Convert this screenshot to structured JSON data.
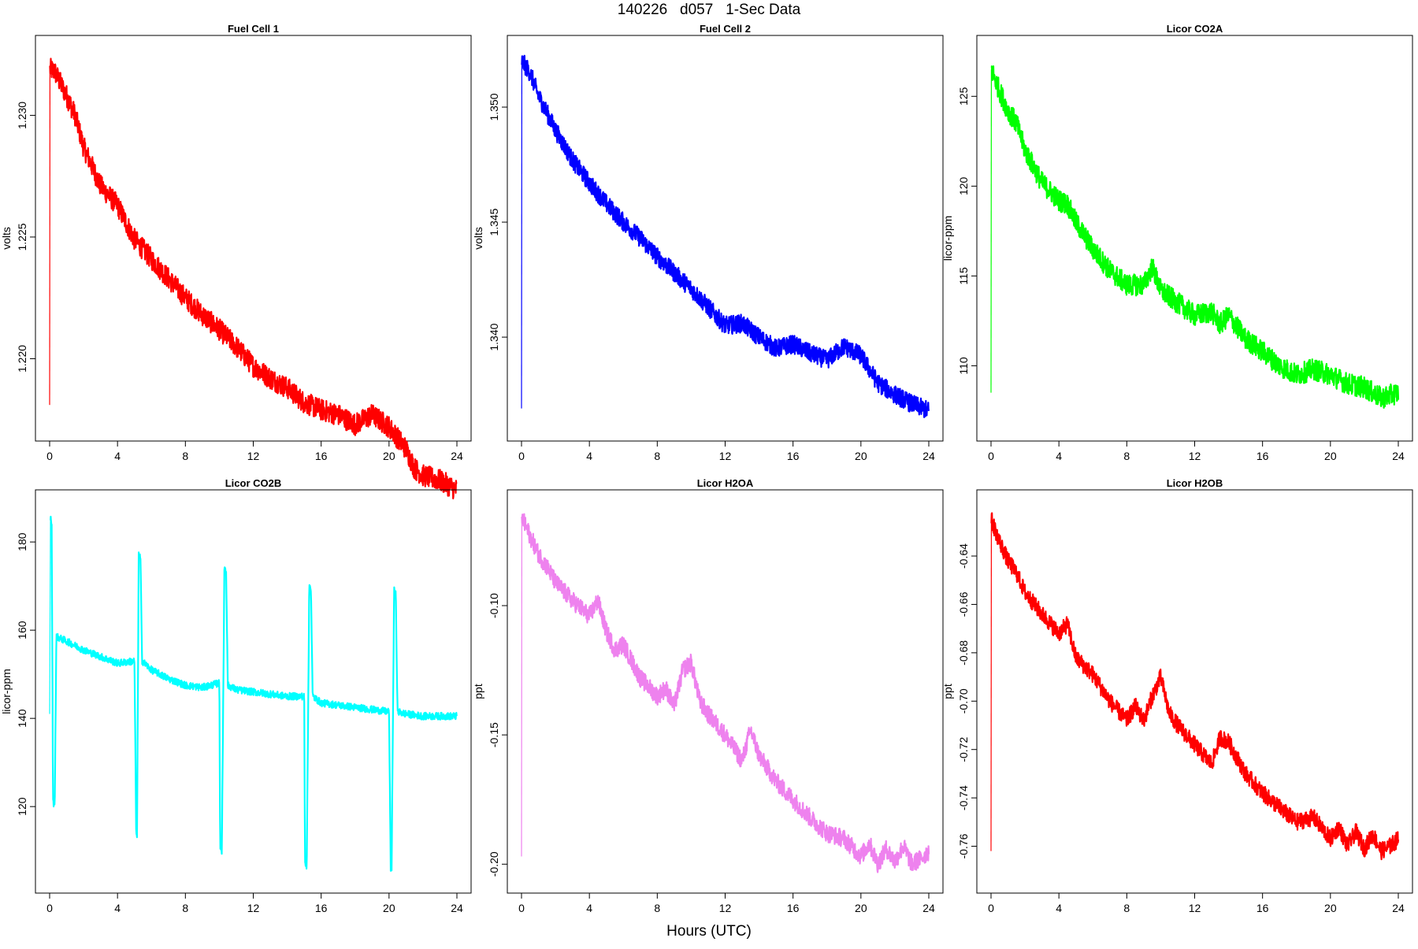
{
  "figure": {
    "title": "140226   d057   1-Sec Data",
    "xlabel": "Hours (UTC)"
  },
  "chart_data": [
    {
      "type": "line",
      "title": "Fuel Cell 1",
      "ylabel": "volts",
      "color": "#ff0000",
      "xlim": [
        0,
        24
      ],
      "ylim": [
        1.2172,
        1.2327
      ],
      "xticks": [
        0,
        4,
        8,
        12,
        16,
        20,
        24
      ],
      "yticks": [
        "1.220",
        "1.225",
        "1.230"
      ],
      "series": [
        {
          "x": [
            0,
            0.02,
            0.3,
            1,
            1.5,
            2,
            3,
            4,
            4.5,
            5,
            6,
            7,
            8,
            9,
            10,
            11,
            12,
            13,
            14,
            15,
            16,
            17,
            18,
            19,
            20,
            21,
            21.5,
            22,
            23,
            24
          ],
          "y": [
            1.2181,
            1.2319,
            1.2318,
            1.2308,
            1.23,
            1.2287,
            1.2271,
            1.2263,
            1.2256,
            1.2249,
            1.2241,
            1.2233,
            1.2225,
            1.2218,
            1.2212,
            1.2205,
            1.2197,
            1.2192,
            1.2188,
            1.2182,
            1.2179,
            1.2177,
            1.2173,
            1.2177,
            1.2172,
            1.2163,
            1.2155,
            1.2152,
            1.215,
            1.2146
          ],
          "band": 0.00045
        }
      ]
    },
    {
      "type": "line",
      "title": "Fuel Cell 2",
      "ylabel": "volts",
      "color": "#0000ff",
      "xlim": [
        0,
        24
      ],
      "ylim": [
        1.3361,
        1.3525
      ],
      "xticks": [
        0,
        4,
        8,
        12,
        16,
        20,
        24
      ],
      "yticks": [
        "1.340",
        "1.345",
        "1.350"
      ],
      "series": [
        {
          "x": [
            0,
            0.02,
            0.5,
            1,
            2,
            3,
            4,
            5,
            6,
            7,
            8,
            9,
            10,
            11,
            12,
            13,
            14,
            15,
            16,
            17,
            18,
            19,
            20,
            21,
            22,
            23,
            24
          ],
          "y": [
            1.3369,
            1.352,
            1.3515,
            1.3505,
            1.349,
            1.3477,
            1.3467,
            1.3458,
            1.345,
            1.3443,
            1.3435,
            1.3428,
            1.3421,
            1.3413,
            1.3405,
            1.3406,
            1.34,
            1.3395,
            1.3397,
            1.3393,
            1.339,
            1.3396,
            1.3392,
            1.338,
            1.3375,
            1.3371,
            1.3368
          ],
          "band": 0.0004
        }
      ]
    },
    {
      "type": "line",
      "title": "Licor CO2A",
      "ylabel": "licor-ppm",
      "color": "#00ff00",
      "xlim": [
        0,
        24
      ],
      "ylim": [
        106.6,
        127.6
      ],
      "xticks": [
        0,
        4,
        8,
        12,
        16,
        20,
        24
      ],
      "yticks": [
        "110",
        "115",
        "120",
        "125"
      ],
      "series": [
        {
          "x": [
            0,
            0.02,
            0.5,
            1,
            1.5,
            2,
            3,
            4,
            4.5,
            5,
            6,
            7,
            8,
            9,
            9.5,
            10,
            11,
            12,
            13,
            13.5,
            14,
            15,
            16,
            17,
            18,
            19,
            20,
            21,
            22,
            23,
            24
          ],
          "y": [
            108.5,
            126.5,
            125.3,
            124.2,
            123.5,
            122.0,
            120.2,
            119.2,
            119.0,
            118.0,
            116.5,
            115.3,
            114.5,
            114.5,
            115.5,
            114.2,
            113.5,
            112.8,
            113.0,
            112.3,
            112.8,
            111.5,
            110.8,
            110.0,
            109.5,
            109.8,
            109.5,
            109.0,
            108.8,
            108.2,
            108.5
          ],
          "band": 0.6
        }
      ]
    },
    {
      "type": "line",
      "title": "Licor CO2B",
      "ylabel": "licor-ppm",
      "color": "#00ffff",
      "xlim": [
        0,
        24
      ],
      "ylim": [
        103.6,
        188.6
      ],
      "xticks": [
        0,
        4,
        8,
        12,
        16,
        20,
        24
      ],
      "yticks": [
        "120",
        "140",
        "160",
        "180"
      ],
      "series": [
        {
          "x": [
            0,
            0.05,
            0.12,
            0.2,
            0.3,
            0.4,
            1,
            2,
            3,
            4,
            5,
            5.1,
            5.15,
            5.25,
            5.35,
            5.45,
            6,
            7,
            8,
            9,
            10,
            10.05,
            10.15,
            10.3,
            10.4,
            10.5,
            11,
            12,
            13,
            14,
            15,
            15.05,
            15.15,
            15.3,
            15.4,
            15.5,
            16,
            17,
            18,
            19,
            20,
            20.1,
            20.15,
            20.3,
            20.4,
            20.5,
            21,
            22,
            23,
            24
          ],
          "y": [
            141,
            185.5,
            184,
            121,
            120.5,
            158.5,
            157.5,
            155.5,
            154,
            152.5,
            153,
            114,
            113,
            177,
            176.5,
            153,
            151,
            149,
            147.5,
            147,
            148,
            111,
            110,
            174.5,
            173.5,
            147.5,
            146.5,
            146,
            145.5,
            145,
            145,
            107,
            106.5,
            170,
            169.5,
            145,
            143.5,
            143,
            142.5,
            142,
            141.5,
            106,
            105.5,
            169,
            168,
            141.5,
            141,
            140.5,
            140.5,
            140.5
          ],
          "band": 0.8
        }
      ]
    },
    {
      "type": "line",
      "title": "Licor H2OA",
      "ylabel": "ppt",
      "color": "#ee82ee",
      "xlim": [
        0,
        24
      ],
      "ylim": [
        -0.2057,
        -0.0607
      ],
      "xticks": [
        0,
        4,
        8,
        12,
        16,
        20,
        24
      ],
      "yticks": [
        "-0.20",
        "-0.15",
        "-0.10"
      ],
      "series": [
        {
          "x": [
            0,
            0.02,
            0.5,
            1,
            1.5,
            2,
            3,
            4,
            4.5,
            5,
            5.5,
            6,
            7,
            8,
            8.5,
            9,
            9.5,
            10,
            10.5,
            11,
            12,
            13,
            13.5,
            14,
            15,
            16,
            17,
            18,
            19,
            20,
            20.5,
            21,
            21.5,
            22,
            22.5,
            23,
            23.5,
            24
          ],
          "y": [
            -0.197,
            -0.066,
            -0.073,
            -0.08,
            -0.085,
            -0.091,
            -0.098,
            -0.104,
            -0.098,
            -0.11,
            -0.117,
            -0.115,
            -0.128,
            -0.135,
            -0.132,
            -0.139,
            -0.125,
            -0.122,
            -0.137,
            -0.142,
            -0.15,
            -0.16,
            -0.148,
            -0.158,
            -0.168,
            -0.175,
            -0.182,
            -0.188,
            -0.19,
            -0.197,
            -0.192,
            -0.2,
            -0.194,
            -0.199,
            -0.193,
            -0.2,
            -0.198,
            -0.195
          ],
          "band": 0.0035
        }
      ]
    },
    {
      "type": "line",
      "title": "Licor H2OB",
      "ylabel": "ppt",
      "color": "#ff0000",
      "xlim": [
        0,
        24
      ],
      "ylim": [
        -0.7735,
        -0.6185
      ],
      "xticks": [
        0,
        4,
        8,
        12,
        16,
        20,
        24
      ],
      "yticks": [
        "-0.76",
        "-0.74",
        "-0.72",
        "-0.70",
        "-0.68",
        "-0.66",
        "-0.64"
      ],
      "series": [
        {
          "x": [
            0,
            0.02,
            0.5,
            1,
            1.5,
            2,
            3,
            4,
            4.5,
            5,
            6,
            7,
            8,
            8.5,
            9,
            9.5,
            10,
            10.5,
            11,
            12,
            13,
            13.5,
            14,
            15,
            16,
            17,
            18,
            19,
            20,
            20.5,
            21,
            21.5,
            22,
            22.5,
            23,
            23.5,
            24
          ],
          "y": [
            -0.762,
            -0.625,
            -0.634,
            -0.642,
            -0.647,
            -0.655,
            -0.664,
            -0.672,
            -0.668,
            -0.682,
            -0.689,
            -0.7,
            -0.708,
            -0.702,
            -0.708,
            -0.698,
            -0.69,
            -0.705,
            -0.71,
            -0.718,
            -0.726,
            -0.715,
            -0.717,
            -0.73,
            -0.738,
            -0.744,
            -0.75,
            -0.748,
            -0.757,
            -0.752,
            -0.76,
            -0.754,
            -0.761,
            -0.755,
            -0.762,
            -0.76,
            -0.757
          ],
          "band": 0.0035
        }
      ]
    }
  ]
}
